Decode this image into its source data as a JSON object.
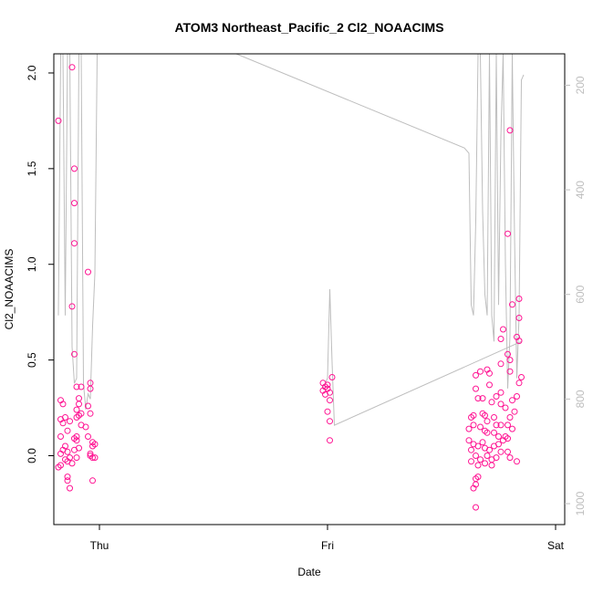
{
  "chart_data": {
    "type": "scatter",
    "title": "ATOM3 Northeast_Pacific_2 Cl2_NOAACIMS",
    "xlabel": "Date",
    "ylabel": "Cl2_NOAACIMS",
    "x_tick_labels": [
      "Thu",
      "Fri",
      "Sat"
    ],
    "y_ticks": [
      0.0,
      0.5,
      1.0,
      1.5,
      2.0
    ],
    "y_tick_labels": [
      "0.0",
      "0.5",
      "1.0",
      "1.5",
      "2.0"
    ],
    "ylim": [
      -0.36,
      2.1
    ],
    "right_axis": {
      "ticks": [
        200,
        400,
        600,
        800,
        1000
      ],
      "tick_labels": [
        "200",
        "400",
        "600",
        "800",
        "1000"
      ],
      "inverted": true,
      "lim": [
        140,
        1040
      ],
      "color": "#bebebe"
    },
    "xlim": [
      -0.2,
      2.04
    ],
    "grid": false,
    "legend": "none",
    "colors": {
      "points": "#ff1493",
      "pressure_line": "#bebebe"
    },
    "series": [
      {
        "marker": "open-circle",
        "points": [
          [
            -0.18,
            1.75
          ],
          [
            -0.12,
            2.03
          ],
          [
            -0.11,
            1.5
          ],
          [
            -0.11,
            1.32
          ],
          [
            -0.11,
            1.11
          ],
          [
            -0.12,
            0.78
          ],
          [
            -0.11,
            0.53
          ],
          [
            -0.05,
            0.96
          ],
          [
            -0.17,
            0.29
          ],
          [
            -0.16,
            0.27
          ],
          [
            -0.17,
            0.19
          ],
          [
            -0.15,
            0.2
          ],
          [
            -0.16,
            0.17
          ],
          [
            -0.13,
            0.18
          ],
          [
            -0.14,
            0.13
          ],
          [
            -0.17,
            0.1
          ],
          [
            -0.15,
            0.05
          ],
          [
            -0.16,
            0.03
          ],
          [
            -0.17,
            0.01
          ],
          [
            -0.14,
            0.02
          ],
          [
            -0.13,
            -0.01
          ],
          [
            -0.15,
            -0.02
          ],
          [
            -0.17,
            -0.05
          ],
          [
            -0.18,
            -0.06
          ],
          [
            -0.14,
            -0.03
          ],
          [
            -0.12,
            -0.04
          ],
          [
            -0.14,
            -0.11
          ],
          [
            -0.14,
            -0.13
          ],
          [
            -0.13,
            -0.17
          ],
          [
            -0.1,
            0.36
          ],
          [
            -0.08,
            0.36
          ],
          [
            -0.09,
            0.3
          ],
          [
            -0.09,
            0.27
          ],
          [
            -0.1,
            0.24
          ],
          [
            -0.08,
            0.22
          ],
          [
            -0.1,
            0.2
          ],
          [
            -0.09,
            0.21
          ],
          [
            -0.06,
            0.15
          ],
          [
            -0.08,
            0.16
          ],
          [
            -0.1,
            0.1
          ],
          [
            -0.11,
            0.09
          ],
          [
            -0.1,
            0.08
          ],
          [
            -0.09,
            0.04
          ],
          [
            -0.11,
            0.03
          ],
          [
            -0.1,
            -0.01
          ],
          [
            -0.04,
            0.38
          ],
          [
            -0.04,
            0.35
          ],
          [
            -0.05,
            0.26
          ],
          [
            -0.04,
            0.22
          ],
          [
            -0.05,
            0.1
          ],
          [
            -0.03,
            0.07
          ],
          [
            -0.03,
            0.05
          ],
          [
            -0.02,
            0.06
          ],
          [
            -0.04,
            0.01
          ],
          [
            -0.03,
            -0.01
          ],
          [
            -0.04,
            0.0
          ],
          [
            -0.02,
            -0.01
          ],
          [
            -0.03,
            -0.13
          ],
          [
            0.98,
            0.38
          ],
          [
            0.99,
            0.36
          ],
          [
            1.0,
            0.37
          ],
          [
            0.98,
            0.34
          ],
          [
            1.0,
            0.35
          ],
          [
            1.02,
            0.41
          ],
          [
            1.01,
            0.33
          ],
          [
            0.99,
            0.32
          ],
          [
            1.01,
            0.29
          ],
          [
            1.0,
            0.23
          ],
          [
            1.01,
            0.18
          ],
          [
            1.01,
            0.08
          ],
          [
            1.8,
            1.7
          ],
          [
            1.79,
            1.16
          ],
          [
            1.81,
            0.79
          ],
          [
            1.84,
            0.82
          ],
          [
            1.84,
            0.72
          ],
          [
            1.77,
            0.66
          ],
          [
            1.83,
            0.62
          ],
          [
            1.84,
            0.6
          ],
          [
            1.76,
            0.61
          ],
          [
            1.79,
            0.53
          ],
          [
            1.8,
            0.5
          ],
          [
            1.85,
            0.41
          ],
          [
            1.84,
            0.38
          ],
          [
            1.8,
            0.44
          ],
          [
            1.76,
            0.48
          ],
          [
            1.7,
            0.45
          ],
          [
            1.71,
            0.43
          ],
          [
            1.67,
            0.44
          ],
          [
            1.65,
            0.42
          ],
          [
            1.65,
            0.35
          ],
          [
            1.66,
            0.3
          ],
          [
            1.68,
            0.3
          ],
          [
            1.71,
            0.37
          ],
          [
            1.72,
            0.28
          ],
          [
            1.74,
            0.31
          ],
          [
            1.76,
            0.33
          ],
          [
            1.76,
            0.27
          ],
          [
            1.78,
            0.25
          ],
          [
            1.81,
            0.29
          ],
          [
            1.83,
            0.31
          ],
          [
            1.63,
            0.2
          ],
          [
            1.64,
            0.21
          ],
          [
            1.68,
            0.22
          ],
          [
            1.69,
            0.21
          ],
          [
            1.7,
            0.18
          ],
          [
            1.73,
            0.2
          ],
          [
            1.74,
            0.16
          ],
          [
            1.76,
            0.16
          ],
          [
            1.79,
            0.16
          ],
          [
            1.8,
            0.2
          ],
          [
            1.82,
            0.23
          ],
          [
            1.62,
            0.14
          ],
          [
            1.64,
            0.16
          ],
          [
            1.67,
            0.15
          ],
          [
            1.69,
            0.13
          ],
          [
            1.7,
            0.12
          ],
          [
            1.73,
            0.12
          ],
          [
            1.75,
            0.1
          ],
          [
            1.77,
            0.08
          ],
          [
            1.79,
            0.09
          ],
          [
            1.81,
            0.14
          ],
          [
            1.62,
            0.08
          ],
          [
            1.64,
            0.06
          ],
          [
            1.66,
            0.05
          ],
          [
            1.68,
            0.07
          ],
          [
            1.69,
            0.04
          ],
          [
            1.71,
            0.03
          ],
          [
            1.73,
            0.05
          ],
          [
            1.75,
            0.06
          ],
          [
            1.78,
            0.1
          ],
          [
            1.63,
            0.03
          ],
          [
            1.65,
            0.0
          ],
          [
            1.67,
            -0.02
          ],
          [
            1.7,
            0.0
          ],
          [
            1.72,
            -0.02
          ],
          [
            1.74,
            -0.01
          ],
          [
            1.76,
            0.02
          ],
          [
            1.79,
            0.02
          ],
          [
            1.63,
            -0.03
          ],
          [
            1.66,
            -0.05
          ],
          [
            1.69,
            -0.04
          ],
          [
            1.72,
            -0.05
          ],
          [
            1.8,
            -0.01
          ],
          [
            1.83,
            -0.03
          ],
          [
            1.65,
            -0.12
          ],
          [
            1.65,
            -0.15
          ],
          [
            1.66,
            -0.11
          ],
          [
            1.64,
            -0.17
          ],
          [
            1.65,
            -0.27
          ]
        ]
      }
    ],
    "pressure_line": [
      [
        -0.18,
        640
      ],
      [
        -0.17,
        70
      ],
      [
        -0.16,
        60
      ],
      [
        -0.15,
        640
      ],
      [
        -0.14,
        80
      ],
      [
        -0.13,
        70
      ],
      [
        -0.12,
        700
      ],
      [
        -0.11,
        770
      ],
      [
        -0.1,
        760
      ],
      [
        -0.09,
        60
      ],
      [
        -0.08,
        90
      ],
      [
        -0.07,
        770
      ],
      [
        -0.06,
        820
      ],
      [
        -0.05,
        790
      ],
      [
        -0.04,
        800
      ],
      [
        -0.03,
        660
      ],
      [
        -0.02,
        560
      ],
      [
        -0.01,
        80
      ],
      [
        0.6,
        130
      ],
      [
        1.6,
        320
      ],
      [
        1.62,
        330
      ],
      [
        1.63,
        620
      ],
      [
        1.64,
        640
      ],
      [
        1.65,
        460
      ],
      [
        1.66,
        110
      ],
      [
        1.67,
        70
      ],
      [
        1.68,
        440
      ],
      [
        1.69,
        600
      ],
      [
        1.7,
        640
      ],
      [
        1.71,
        130
      ],
      [
        1.72,
        640
      ],
      [
        1.73,
        690
      ],
      [
        1.74,
        90
      ],
      [
        1.75,
        620
      ],
      [
        1.76,
        300
      ],
      [
        1.77,
        70
      ],
      [
        1.78,
        540
      ],
      [
        1.79,
        780
      ],
      [
        1.8,
        680
      ],
      [
        1.81,
        80
      ],
      [
        1.82,
        490
      ],
      [
        1.83,
        760
      ],
      [
        1.84,
        640
      ],
      [
        1.85,
        190
      ],
      [
        1.86,
        180
      ]
    ],
    "pressure_line_2": [
      [
        0.98,
        780
      ],
      [
        1.0,
        760
      ],
      [
        1.01,
        590
      ],
      [
        1.02,
        730
      ],
      [
        1.03,
        850
      ],
      [
        1.85,
        690
      ]
    ]
  }
}
